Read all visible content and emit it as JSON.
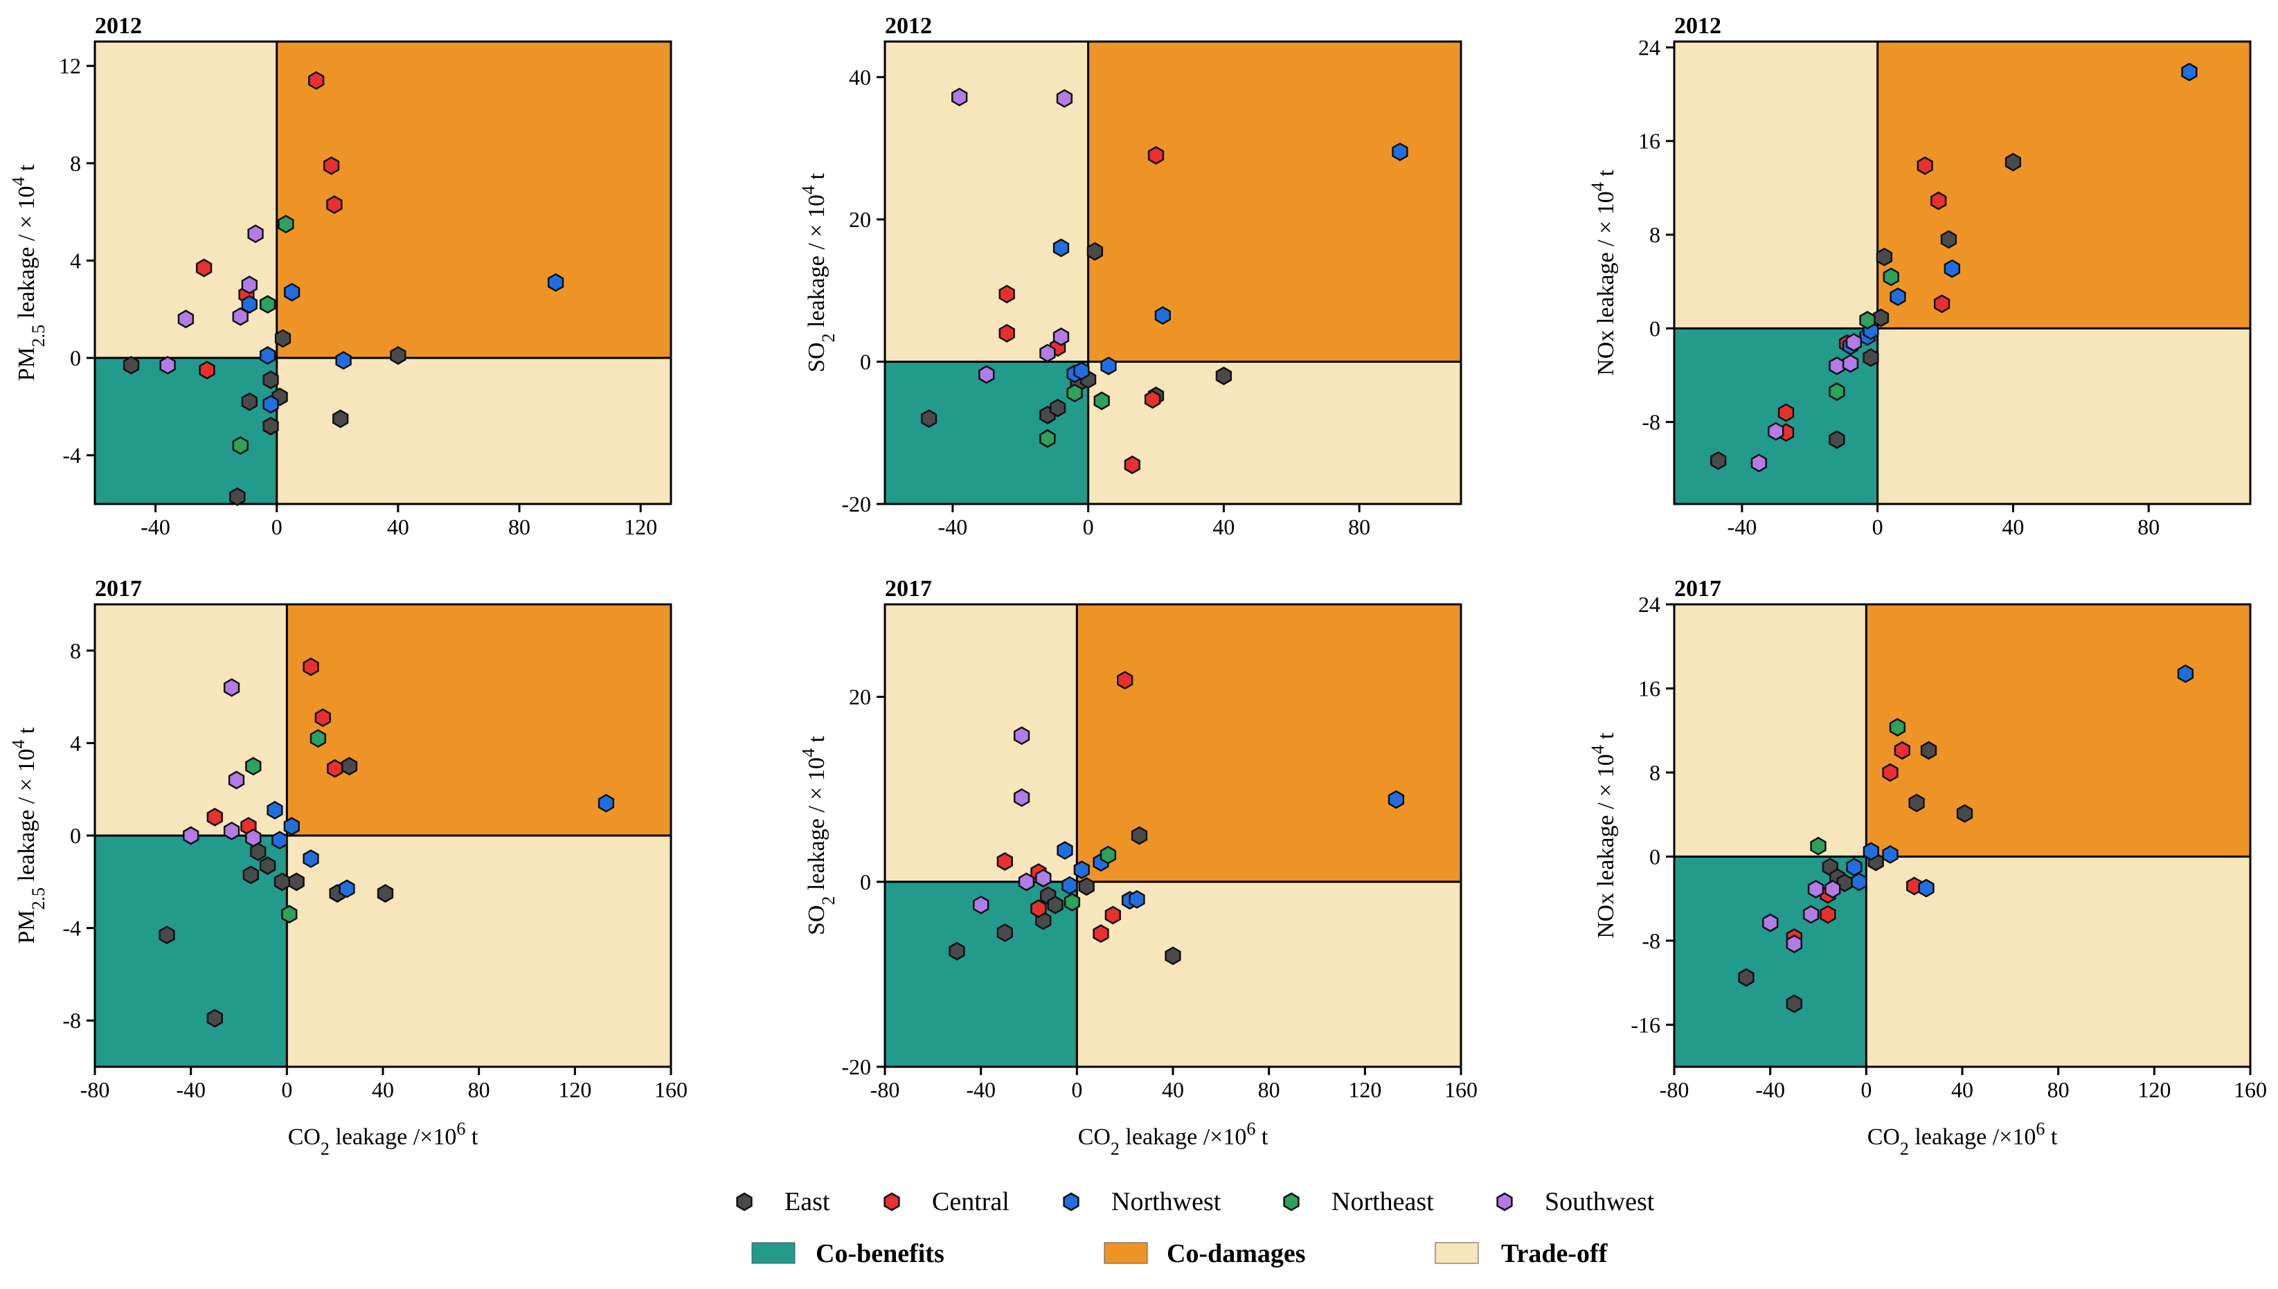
{
  "legend": {
    "series": [
      {
        "name": "East",
        "color": "#4a4a4a"
      },
      {
        "name": "Central",
        "color": "#e8302f"
      },
      {
        "name": "Northwest",
        "color": "#1f6fe0"
      },
      {
        "name": "Northeast",
        "color": "#2ea15a"
      },
      {
        "name": "Southwest",
        "color": "#b27be8"
      }
    ],
    "regions": [
      {
        "name": "Co-benefits",
        "color": "#229a8c"
      },
      {
        "name": "Co-damages",
        "color": "#ee9426"
      },
      {
        "name": "Trade-off",
        "color": "#f7e5bb"
      }
    ]
  },
  "chart_data": [
    {
      "type": "scatter",
      "title": "2012",
      "xlabel_pre": "",
      "xlabel_sub": "",
      "xlabel_sup": "",
      "xlabel_post": "",
      "ylabel_pre": "PM",
      "ylabel_sub": "2.5",
      "ylabel_mid": " leakage / × 10",
      "ylabel_sup": "4",
      "ylabel_post": " t",
      "xlim": [
        -60,
        130
      ],
      "ylim": [
        -6,
        13
      ],
      "xticks": [
        "-40",
        "0",
        "40",
        "80",
        "120"
      ],
      "xtick_values": [
        -40,
        0,
        40,
        80,
        120
      ],
      "yticks": [
        "-4",
        "0",
        "4",
        "8",
        "12"
      ],
      "ytick_values": [
        -4,
        0,
        4,
        8,
        12
      ],
      "series": [
        {
          "name": "East",
          "points": [
            [
              -48,
              -0.3
            ],
            [
              -13,
              -5.7
            ],
            [
              -9,
              -1.8
            ],
            [
              -2,
              -0.9
            ],
            [
              -2,
              -2.8
            ],
            [
              1,
              -1.6
            ],
            [
              2,
              0.8
            ],
            [
              21,
              -2.5
            ],
            [
              40,
              0.1
            ]
          ]
        },
        {
          "name": "Central",
          "points": [
            [
              -24,
              3.7
            ],
            [
              -23,
              -0.5
            ],
            [
              -10,
              2.6
            ],
            [
              13,
              11.4
            ],
            [
              18,
              7.9
            ],
            [
              19,
              6.3
            ]
          ]
        },
        {
          "name": "Northwest",
          "points": [
            [
              -9,
              2.2
            ],
            [
              -3,
              0.1
            ],
            [
              -2,
              -1.9
            ],
            [
              5,
              2.7
            ],
            [
              22,
              -0.1
            ],
            [
              92,
              3.1
            ]
          ]
        },
        {
          "name": "Northeast",
          "points": [
            [
              -12,
              -3.6
            ],
            [
              -3,
              2.2
            ],
            [
              3,
              5.5
            ]
          ]
        },
        {
          "name": "Southwest",
          "points": [
            [
              -36,
              -0.3
            ],
            [
              -30,
              1.6
            ],
            [
              -12,
              1.7
            ],
            [
              -9,
              3.0
            ],
            [
              -7,
              5.1
            ]
          ]
        }
      ]
    },
    {
      "type": "scatter",
      "title": "2012",
      "xlabel_pre": "",
      "xlabel_sub": "",
      "xlabel_sup": "",
      "xlabel_post": "",
      "ylabel_pre": "SO",
      "ylabel_sub": "2",
      "ylabel_mid": " leakage / × 10",
      "ylabel_sup": "4",
      "ylabel_post": " t",
      "xlim": [
        -60,
        110
      ],
      "ylim": [
        -20,
        45
      ],
      "xticks": [
        "-40",
        "0",
        "40",
        "80"
      ],
      "xtick_values": [
        -40,
        0,
        40,
        80
      ],
      "yticks": [
        "-20",
        "0",
        "20",
        "40"
      ],
      "ytick_values": [
        -20,
        0,
        20,
        40
      ],
      "series": [
        {
          "name": "East",
          "points": [
            [
              -47,
              -8
            ],
            [
              -12,
              -7.5
            ],
            [
              -9,
              -6.5
            ],
            [
              -3,
              -3
            ],
            [
              0,
              -2.5
            ],
            [
              2,
              15.5
            ],
            [
              20,
              -4.8
            ],
            [
              40,
              -2
            ]
          ]
        },
        {
          "name": "Central",
          "points": [
            [
              -24,
              9.5
            ],
            [
              -24,
              4
            ],
            [
              -9,
              2
            ],
            [
              13,
              -14.5
            ],
            [
              19,
              -5.3
            ],
            [
              20,
              29
            ]
          ]
        },
        {
          "name": "Northwest",
          "points": [
            [
              -8,
              16
            ],
            [
              -4,
              -1.7
            ],
            [
              -2,
              -1.3
            ],
            [
              6,
              -0.6
            ],
            [
              22,
              6.5
            ],
            [
              92,
              29.5
            ]
          ]
        },
        {
          "name": "Northeast",
          "points": [
            [
              -12,
              -10.8
            ],
            [
              -4,
              -4.4
            ],
            [
              4,
              -5.5
            ]
          ]
        },
        {
          "name": "Southwest",
          "points": [
            [
              -38,
              37.2
            ],
            [
              -30,
              -1.8
            ],
            [
              -12,
              1.2
            ],
            [
              -8,
              3.5
            ],
            [
              -7,
              37
            ]
          ]
        }
      ]
    },
    {
      "type": "scatter",
      "title": "2012",
      "xlabel_pre": "",
      "xlabel_sub": "",
      "xlabel_sup": "",
      "xlabel_post": "",
      "ylabel_pre": "NOx leakage / × 10",
      "ylabel_sub": "",
      "ylabel_mid": "",
      "ylabel_sup": "4",
      "ylabel_post": " t",
      "xlim": [
        -60,
        110
      ],
      "ylim": [
        -15,
        24.5
      ],
      "xticks": [
        "-40",
        "0",
        "40",
        "80"
      ],
      "xtick_values": [
        -40,
        0,
        40,
        80
      ],
      "yticks": [
        "-8",
        "0",
        "8",
        "16",
        "24"
      ],
      "ytick_values": [
        -8,
        0,
        8,
        16,
        24
      ],
      "series": [
        {
          "name": "East",
          "points": [
            [
              -47,
              -11.3
            ],
            [
              -12,
              -9.5
            ],
            [
              -2,
              -2.5
            ],
            [
              1,
              0.9
            ],
            [
              2,
              6.1
            ],
            [
              21,
              7.6
            ],
            [
              40,
              14.2
            ]
          ]
        },
        {
          "name": "Central",
          "points": [
            [
              -27,
              -7.2
            ],
            [
              -27,
              -8.9
            ],
            [
              -9,
              -1.3
            ],
            [
              14,
              13.9
            ],
            [
              18,
              10.9
            ],
            [
              19,
              2.1
            ]
          ]
        },
        {
          "name": "Northwest",
          "points": [
            [
              -8,
              -1.5
            ],
            [
              -3,
              -0.7
            ],
            [
              -2,
              -0.2
            ],
            [
              6,
              2.7
            ],
            [
              22,
              5.1
            ],
            [
              92,
              21.9
            ]
          ]
        },
        {
          "name": "Northeast",
          "points": [
            [
              -12,
              -5.4
            ],
            [
              -3,
              0.7
            ],
            [
              4,
              4.4
            ]
          ]
        },
        {
          "name": "Southwest",
          "points": [
            [
              -35,
              -11.5
            ],
            [
              -30,
              -8.8
            ],
            [
              -12,
              -3.2
            ],
            [
              -8,
              -3.0
            ],
            [
              -7,
              -1.2
            ]
          ]
        }
      ]
    },
    {
      "type": "scatter",
      "title": "2017",
      "xlabel_pre": "CO",
      "xlabel_sub": "2",
      "xlabel_mid": " leakage /×10",
      "xlabel_sup": "6",
      "xlabel_post": " t",
      "ylabel_pre": "PM",
      "ylabel_sub": "2.5",
      "ylabel_mid": " leakage / × 10",
      "ylabel_sup": "4",
      "ylabel_post": " t",
      "xlim": [
        -80,
        160
      ],
      "ylim": [
        -10,
        10
      ],
      "xticks": [
        "-80",
        "-40",
        "0",
        "40",
        "80",
        "120",
        "160"
      ],
      "xtick_values": [
        -80,
        -40,
        0,
        40,
        80,
        120,
        160
      ],
      "yticks": [
        "-8",
        "-4",
        "0",
        "4",
        "8"
      ],
      "ytick_values": [
        -8,
        -4,
        0,
        4,
        8
      ],
      "series": [
        {
          "name": "East",
          "points": [
            [
              -50,
              -4.3
            ],
            [
              -30,
              -7.9
            ],
            [
              -15,
              -1.7
            ],
            [
              -12,
              -0.7
            ],
            [
              -8,
              -1.3
            ],
            [
              -2,
              -2.0
            ],
            [
              4,
              -2.0
            ],
            [
              21,
              -2.5
            ],
            [
              26,
              3.0
            ],
            [
              41,
              -2.5
            ]
          ]
        },
        {
          "name": "Central",
          "points": [
            [
              -30,
              0.8
            ],
            [
              -16,
              0.4
            ],
            [
              10,
              7.3
            ],
            [
              15,
              5.1
            ],
            [
              20,
              2.9
            ]
          ]
        },
        {
          "name": "Northwest",
          "points": [
            [
              -5,
              1.1
            ],
            [
              -3,
              -0.2
            ],
            [
              2,
              0.4
            ],
            [
              10,
              -1.0
            ],
            [
              25,
              -2.3
            ],
            [
              133,
              1.4
            ]
          ]
        },
        {
          "name": "Northeast",
          "points": [
            [
              -14,
              3.0
            ],
            [
              1,
              -3.4
            ],
            [
              13,
              4.2
            ]
          ]
        },
        {
          "name": "Southwest",
          "points": [
            [
              -40,
              0.0
            ],
            [
              -23,
              6.4
            ],
            [
              -21,
              2.4
            ],
            [
              -23,
              0.2
            ],
            [
              -14,
              -0.1
            ]
          ]
        }
      ]
    },
    {
      "type": "scatter",
      "title": "2017",
      "xlabel_pre": "CO",
      "xlabel_sub": "2",
      "xlabel_mid": " leakage /×10",
      "xlabel_sup": "6",
      "xlabel_post": " t",
      "ylabel_pre": "SO",
      "ylabel_sub": "2",
      "ylabel_mid": " leakage / × 10",
      "ylabel_sup": "4",
      "ylabel_post": " t",
      "xlim": [
        -80,
        160
      ],
      "ylim": [
        -20,
        30
      ],
      "xticks": [
        "-80",
        "-40",
        "0",
        "40",
        "80",
        "120",
        "160"
      ],
      "xtick_values": [
        -80,
        -40,
        0,
        40,
        80,
        120,
        160
      ],
      "yticks": [
        "-20",
        "0",
        "20"
      ],
      "ytick_values": [
        -20,
        0,
        20
      ],
      "series": [
        {
          "name": "East",
          "points": [
            [
              -50,
              -7.5
            ],
            [
              -30,
              -5.5
            ],
            [
              -14,
              -4.2
            ],
            [
              -12,
              -1.5
            ],
            [
              -9,
              -2.5
            ],
            [
              4,
              -0.5
            ],
            [
              26,
              5.0
            ],
            [
              40,
              -8.0
            ]
          ]
        },
        {
          "name": "Central",
          "points": [
            [
              -30,
              2.2
            ],
            [
              -16,
              1.0
            ],
            [
              -16,
              -2.9
            ],
            [
              10,
              -5.6
            ],
            [
              15,
              -3.6
            ],
            [
              20,
              21.8
            ]
          ]
        },
        {
          "name": "Northwest",
          "points": [
            [
              -5,
              3.4
            ],
            [
              -3,
              -0.4
            ],
            [
              2,
              1.3
            ],
            [
              10,
              2.1
            ],
            [
              22,
              -2.0
            ],
            [
              25,
              -1.9
            ],
            [
              133,
              8.9
            ]
          ]
        },
        {
          "name": "Northeast",
          "points": [
            [
              -2,
              -2.2
            ],
            [
              13,
              2.9
            ]
          ]
        },
        {
          "name": "Southwest",
          "points": [
            [
              -40,
              -2.5
            ],
            [
              -23,
              15.8
            ],
            [
              -23,
              9.1
            ],
            [
              -21,
              0.0
            ],
            [
              -14,
              0.4
            ]
          ]
        }
      ]
    },
    {
      "type": "scatter",
      "title": "2017",
      "xlabel_pre": "CO",
      "xlabel_sub": "2",
      "xlabel_mid": " leakage /×10",
      "xlabel_sup": "6",
      "xlabel_post": " t",
      "ylabel_pre": "NOx leakage / × 10",
      "ylabel_sub": "",
      "ylabel_mid": "",
      "ylabel_sup": "4",
      "ylabel_post": " t",
      "xlim": [
        -80,
        160
      ],
      "ylim": [
        -20,
        24
      ],
      "xticks": [
        "-80",
        "-40",
        "0",
        "40",
        "80",
        "120",
        "160"
      ],
      "xtick_values": [
        -80,
        -40,
        0,
        40,
        80,
        120,
        160
      ],
      "yticks": [
        "-16",
        "-8",
        "0",
        "8",
        "16",
        "24"
      ],
      "ytick_values": [
        -16,
        -8,
        0,
        8,
        16,
        24
      ],
      "series": [
        {
          "name": "East",
          "points": [
            [
              -50,
              -11.5
            ],
            [
              -30,
              -14.0
            ],
            [
              -15,
              -1.0
            ],
            [
              -12,
              -2.0
            ],
            [
              -9,
              -2.5
            ],
            [
              4,
              -0.5
            ],
            [
              21,
              5.1
            ],
            [
              26,
              10.1
            ],
            [
              41,
              4.1
            ]
          ]
        },
        {
          "name": "Central",
          "points": [
            [
              -30,
              -7.7
            ],
            [
              -16,
              -3.6
            ],
            [
              -16,
              -5.5
            ],
            [
              10,
              8.0
            ],
            [
              15,
              10.1
            ],
            [
              20,
              -2.8
            ]
          ]
        },
        {
          "name": "Northwest",
          "points": [
            [
              -5,
              -1.0
            ],
            [
              -3,
              -2.4
            ],
            [
              2,
              0.5
            ],
            [
              10,
              0.2
            ],
            [
              25,
              -3.0
            ],
            [
              133,
              17.4
            ]
          ]
        },
        {
          "name": "Northeast",
          "points": [
            [
              -20,
              1.0
            ],
            [
              13,
              12.3
            ]
          ]
        },
        {
          "name": "Southwest",
          "points": [
            [
              -40,
              -6.3
            ],
            [
              -30,
              -8.3
            ],
            [
              -21,
              -3.1
            ],
            [
              -14,
              -3.1
            ],
            [
              -23,
              -5.5
            ]
          ]
        }
      ]
    }
  ]
}
